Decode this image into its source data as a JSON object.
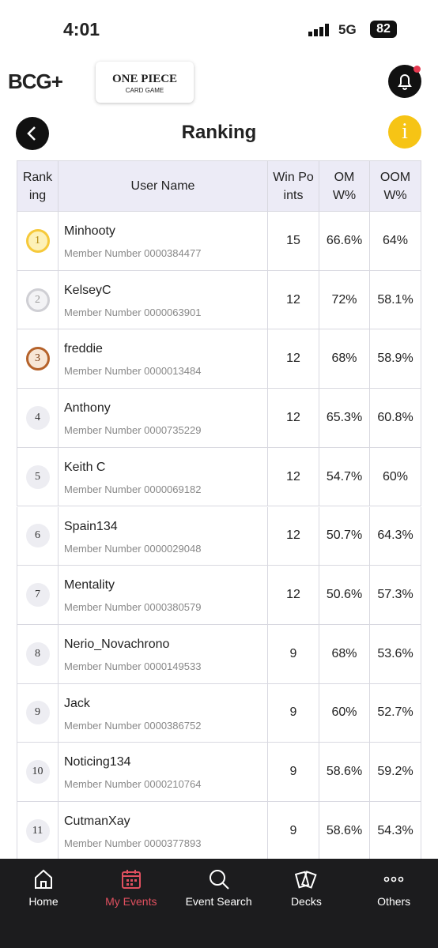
{
  "status": {
    "time": "4:01",
    "network": "5G",
    "battery": "82"
  },
  "header": {
    "brand": "BCG+",
    "game_logo": "ONE PIECE",
    "game_sub": "CARD GAME",
    "title": "Ranking"
  },
  "table": {
    "columns": [
      "Ranking",
      "User Name",
      "Win Points",
      "OMW%",
      "OOMW%"
    ],
    "rows": [
      [
        1,
        "Minhooty",
        "Member Number 0000384477",
        15,
        "66.6%",
        "64%"
      ],
      [
        2,
        "KelseyC",
        "Member Number 0000063901",
        12,
        "72%",
        "58.1%"
      ],
      [
        3,
        "freddie",
        "Member Number 0000013484",
        12,
        "68%",
        "58.9%"
      ],
      [
        4,
        "Anthony",
        "Member Number 0000735229",
        12,
        "65.3%",
        "60.8%"
      ],
      [
        5,
        "Keith C",
        "Member Number 0000069182",
        12,
        "54.7%",
        "60%"
      ],
      [
        6,
        "Spain134",
        "Member Number 0000029048",
        12,
        "50.7%",
        "64.3%"
      ],
      [
        7,
        "Mentality",
        "Member Number 0000380579",
        12,
        "50.6%",
        "57.3%"
      ],
      [
        8,
        "Nerio_Novachrono",
        "Member Number 0000149533",
        9,
        "68%",
        "53.6%"
      ],
      [
        9,
        "Jack",
        "Member Number 0000386752",
        9,
        "60%",
        "52.7%"
      ],
      [
        10,
        "Noticing134",
        "Member Number 0000210764",
        9,
        "58.6%",
        "59.2%"
      ],
      [
        11,
        "CutmanXay",
        "Member Number 0000377893",
        9,
        "58.6%",
        "54.3%"
      ]
    ]
  },
  "nav": [
    "Home",
    "My Events",
    "Event Search",
    "Decks",
    "Others"
  ]
}
